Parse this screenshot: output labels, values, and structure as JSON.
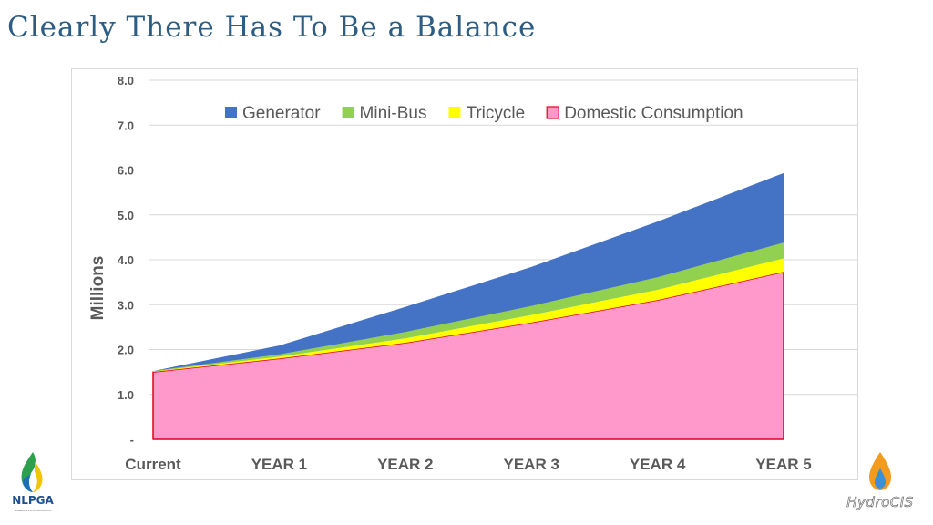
{
  "slide": {
    "title": "Clearly There Has To Be a Balance"
  },
  "logos": {
    "left_name": "NLPGA",
    "left_tagline": "NIGERIA LPG ASSOCIATION",
    "right_name": "HydroCIS"
  },
  "chart_data": {
    "type": "area",
    "stacked": true,
    "x": [
      "Current",
      "YEAR 1",
      "YEAR 2",
      "YEAR 3",
      "YEAR 4",
      "YEAR 5"
    ],
    "ylabel": "Millions",
    "xlabel": "",
    "ylim": [
      0,
      8
    ],
    "yticks": [
      0,
      1,
      2,
      3,
      4,
      5,
      6,
      7,
      8
    ],
    "ytick_labels": [
      "-",
      "1.0",
      "2.0",
      "3.0",
      "4.0",
      "5.0",
      "6.0",
      "7.0",
      "8.0"
    ],
    "grid": true,
    "legend_position": "top",
    "series": [
      {
        "name": "Domestic Consumption",
        "color": "#ff99cc",
        "edge": "#e0001a",
        "values": [
          1.5,
          1.8,
          2.15,
          2.6,
          3.1,
          3.73
        ]
      },
      {
        "name": "Tricycle",
        "color": "#ffff00",
        "values": [
          0.01,
          0.04,
          0.1,
          0.17,
          0.23,
          0.3
        ]
      },
      {
        "name": "Mini-Bus",
        "color": "#92d050",
        "values": [
          0.01,
          0.05,
          0.14,
          0.2,
          0.28,
          0.35
        ]
      },
      {
        "name": "Generator",
        "color": "#4472c4",
        "values": [
          0.0,
          0.2,
          0.56,
          0.87,
          1.24,
          1.55
        ]
      }
    ],
    "legend_order": [
      "Generator",
      "Mini-Bus",
      "Tricycle",
      "Domestic Consumption"
    ]
  }
}
